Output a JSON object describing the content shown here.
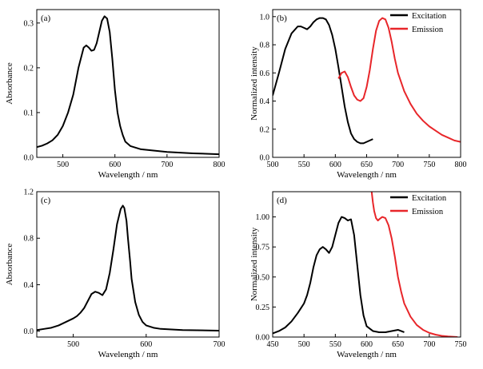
{
  "chart_data": [
    {
      "panel": "(a)",
      "type": "line",
      "xlabel": "Wavelength / nm",
      "ylabel": "Absorbance",
      "xlim": [
        450,
        800
      ],
      "ylim": [
        0.0,
        0.33
      ],
      "xticks": [
        500,
        600,
        700,
        800
      ],
      "yticks": [
        0.0,
        0.1,
        0.2,
        0.3
      ],
      "ytick_labels": [
        "0.0",
        "0.1",
        "0.2",
        "0.3"
      ],
      "grid": false,
      "series": [
        {
          "color": "#000000",
          "x": [
            450,
            460,
            470,
            480,
            490,
            500,
            510,
            520,
            530,
            540,
            545,
            550,
            555,
            560,
            565,
            570,
            575,
            580,
            585,
            590,
            595,
            600,
            605,
            610,
            615,
            620,
            630,
            650,
            700,
            750,
            800
          ],
          "y": [
            0.023,
            0.026,
            0.031,
            0.038,
            0.05,
            0.07,
            0.1,
            0.14,
            0.2,
            0.245,
            0.25,
            0.245,
            0.238,
            0.24,
            0.255,
            0.28,
            0.305,
            0.315,
            0.31,
            0.28,
            0.22,
            0.15,
            0.1,
            0.07,
            0.05,
            0.035,
            0.025,
            0.018,
            0.012,
            0.009,
            0.007
          ]
        }
      ]
    },
    {
      "panel": "(b)",
      "type": "line",
      "xlabel": "Wavelength / nm",
      "ylabel": "Normalized intensity",
      "xlim": [
        500,
        800
      ],
      "ylim": [
        0.0,
        1.05
      ],
      "xticks": [
        500,
        550,
        600,
        650,
        700,
        750,
        800
      ],
      "yticks": [
        0.0,
        0.2,
        0.4,
        0.6,
        0.8,
        1.0
      ],
      "ytick_labels": [
        "0.0",
        "0.2",
        "0.4",
        "0.6",
        "0.8",
        "1.0"
      ],
      "grid": false,
      "legend": "top-right",
      "series": [
        {
          "name": "Excitation",
          "color": "#000000",
          "x": [
            500,
            510,
            520,
            530,
            540,
            545,
            550,
            555,
            560,
            565,
            570,
            575,
            580,
            585,
            590,
            595,
            600,
            605,
            610,
            615,
            620,
            625,
            630,
            635,
            640,
            645,
            650,
            655,
            660
          ],
          "y": [
            0.44,
            0.6,
            0.77,
            0.88,
            0.93,
            0.93,
            0.92,
            0.91,
            0.93,
            0.96,
            0.98,
            0.99,
            0.99,
            0.98,
            0.94,
            0.87,
            0.77,
            0.64,
            0.5,
            0.36,
            0.25,
            0.17,
            0.13,
            0.11,
            0.1,
            0.1,
            0.11,
            0.12,
            0.13
          ]
        },
        {
          "name": "Emission",
          "color": "#e8262a",
          "x": [
            605,
            610,
            615,
            620,
            625,
            630,
            635,
            640,
            645,
            650,
            655,
            660,
            665,
            670,
            675,
            680,
            685,
            690,
            695,
            700,
            710,
            720,
            730,
            740,
            750,
            760,
            770,
            780,
            790,
            800
          ],
          "y": [
            0.56,
            0.6,
            0.61,
            0.57,
            0.5,
            0.44,
            0.41,
            0.4,
            0.42,
            0.5,
            0.62,
            0.77,
            0.9,
            0.97,
            0.99,
            0.98,
            0.92,
            0.82,
            0.7,
            0.6,
            0.47,
            0.38,
            0.31,
            0.26,
            0.22,
            0.19,
            0.16,
            0.14,
            0.12,
            0.11
          ]
        }
      ]
    },
    {
      "panel": "(c)",
      "type": "line",
      "xlabel": "Wavelength / nm",
      "ylabel": "Absorbance",
      "xlim": [
        450,
        700
      ],
      "ylim": [
        -0.05,
        1.2
      ],
      "xticks": [
        500,
        600,
        700
      ],
      "yticks": [
        0.0,
        0.4,
        0.8,
        1.2
      ],
      "ytick_labels": [
        "0.0",
        "0.4",
        "0.8",
        "1.2"
      ],
      "grid": false,
      "series": [
        {
          "color": "#000000",
          "x": [
            450,
            460,
            470,
            480,
            490,
            500,
            505,
            510,
            515,
            520,
            525,
            530,
            535,
            540,
            545,
            550,
            555,
            560,
            565,
            568,
            570,
            573,
            575,
            578,
            580,
            585,
            590,
            595,
            600,
            610,
            620,
            650,
            700
          ],
          "y": [
            0.01,
            0.02,
            0.03,
            0.05,
            0.08,
            0.11,
            0.13,
            0.16,
            0.2,
            0.26,
            0.32,
            0.34,
            0.33,
            0.31,
            0.36,
            0.5,
            0.7,
            0.92,
            1.05,
            1.08,
            1.06,
            0.95,
            0.8,
            0.6,
            0.45,
            0.25,
            0.14,
            0.08,
            0.05,
            0.03,
            0.02,
            0.01,
            0.005
          ]
        }
      ]
    },
    {
      "panel": "(d)",
      "type": "line",
      "xlabel": "Wavelength / nm",
      "ylabel": "Normalized intensity",
      "xlim": [
        450,
        750
      ],
      "ylim": [
        0.0,
        1.21
      ],
      "xticks": [
        450,
        500,
        550,
        600,
        650,
        700,
        750
      ],
      "yticks": [
        0.0,
        0.25,
        0.5,
        0.75,
        1.0
      ],
      "ytick_labels": [
        "0.00",
        "0.25",
        "0.50",
        "0.75",
        "1.00"
      ],
      "grid": false,
      "legend": "top-right",
      "series": [
        {
          "name": "Excitation",
          "color": "#000000",
          "x": [
            450,
            460,
            470,
            480,
            490,
            495,
            500,
            505,
            510,
            515,
            520,
            525,
            530,
            535,
            540,
            545,
            550,
            555,
            560,
            565,
            570,
            575,
            580,
            585,
            590,
            595,
            600,
            610,
            620,
            630,
            640,
            650,
            655,
            660
          ],
          "y": [
            0.03,
            0.05,
            0.08,
            0.13,
            0.2,
            0.24,
            0.28,
            0.35,
            0.45,
            0.58,
            0.68,
            0.73,
            0.75,
            0.73,
            0.7,
            0.75,
            0.85,
            0.95,
            1.0,
            0.99,
            0.97,
            0.98,
            0.85,
            0.6,
            0.35,
            0.18,
            0.09,
            0.05,
            0.04,
            0.04,
            0.05,
            0.06,
            0.05,
            0.04
          ]
        },
        {
          "name": "Emission",
          "color": "#e8262a",
          "x": [
            608,
            610,
            612,
            615,
            618,
            620,
            625,
            630,
            635,
            640,
            645,
            650,
            655,
            660,
            670,
            680,
            690,
            700,
            710,
            720,
            730,
            740,
            745
          ],
          "y": [
            1.21,
            1.12,
            1.05,
            0.99,
            0.97,
            0.98,
            1.0,
            0.99,
            0.93,
            0.82,
            0.67,
            0.5,
            0.38,
            0.28,
            0.17,
            0.1,
            0.06,
            0.035,
            0.02,
            0.01,
            0.005,
            0.002,
            0.0
          ]
        }
      ]
    }
  ]
}
